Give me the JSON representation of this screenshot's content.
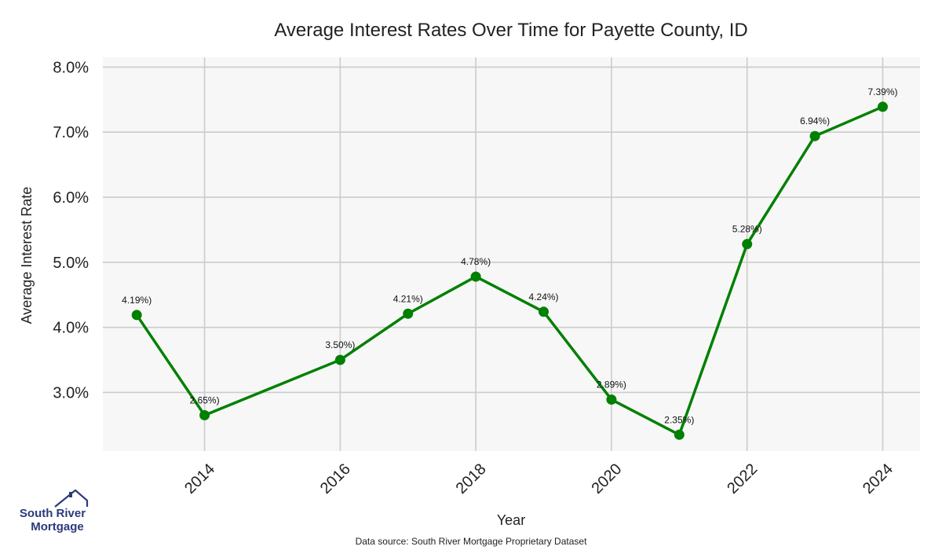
{
  "chart_data": {
    "type": "line",
    "title": "Average Interest Rates Over Time for Payette County, ID",
    "xlabel": "Year",
    "ylabel": "Average Interest Rate",
    "x": [
      2013,
      2014,
      2016,
      2017,
      2018,
      2019,
      2020,
      2021,
      2022,
      2023,
      2024
    ],
    "values": [
      4.19,
      2.65,
      3.5,
      4.21,
      4.78,
      4.24,
      2.89,
      2.35,
      5.28,
      6.94,
      7.39
    ],
    "data_labels": [
      "4.19%)",
      "2.65%)",
      "3.50%)",
      "4.21%)",
      "4.78%)",
      "4.24%)",
      "2.89%)",
      "2.35%)",
      "5.28%)",
      "6.94%)",
      "7.39%)"
    ],
    "x_ticks": [
      2014,
      2016,
      2018,
      2020,
      2022,
      2024
    ],
    "x_tick_labels": [
      "2014",
      "2016",
      "2018",
      "2020",
      "2022",
      "2024"
    ],
    "y_ticks": [
      3,
      4,
      5,
      6,
      7,
      8
    ],
    "y_tick_labels": [
      "3.0%",
      "4.0%",
      "5.0%",
      "6.0%",
      "7.0%",
      "8.0%"
    ],
    "xlim": [
      2012.5,
      2024.55
    ],
    "ylim": [
      2.1,
      8.15
    ],
    "grid": true,
    "line_color": "#008000",
    "plot_background": "#f7f7f7",
    "grid_color": "#cccccc"
  },
  "footer": {
    "source": "Data source: South River Mortgage Proprietary Dataset"
  },
  "logo": {
    "line1": "South River",
    "line2": "Mortgage",
    "color": "#2b3a7a",
    "icon": "house-roof-icon"
  }
}
